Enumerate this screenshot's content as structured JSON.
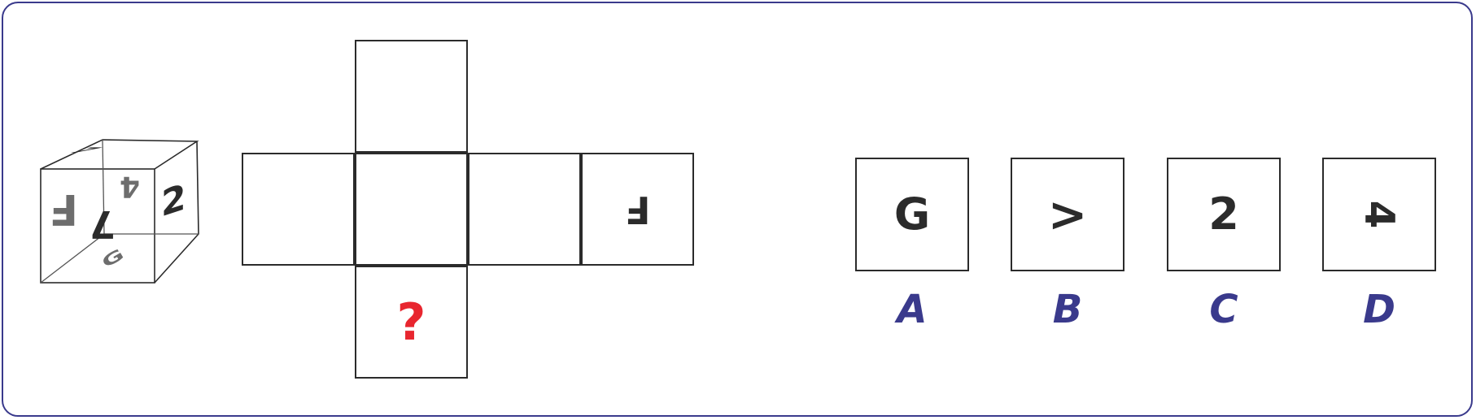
{
  "colors": {
    "frame": "#3a3a8c",
    "question_mark": "#e8262f",
    "option_labels": "#3a3a8c",
    "ink": "#2b2b2b",
    "gray_ink": "#6d6d6d"
  },
  "cube": {
    "front_face": "F",
    "top_face": "7",
    "right_face": "2",
    "back_face": "4",
    "bottom_face": "G",
    "middle": "7"
  },
  "net": {
    "right_face": "F",
    "missing": "?"
  },
  "options": [
    {
      "letter": "A",
      "glyph": "G"
    },
    {
      "letter": "B",
      "glyph": ">"
    },
    {
      "letter": "C",
      "glyph": "2"
    },
    {
      "letter": "D",
      "glyph": "4"
    }
  ]
}
